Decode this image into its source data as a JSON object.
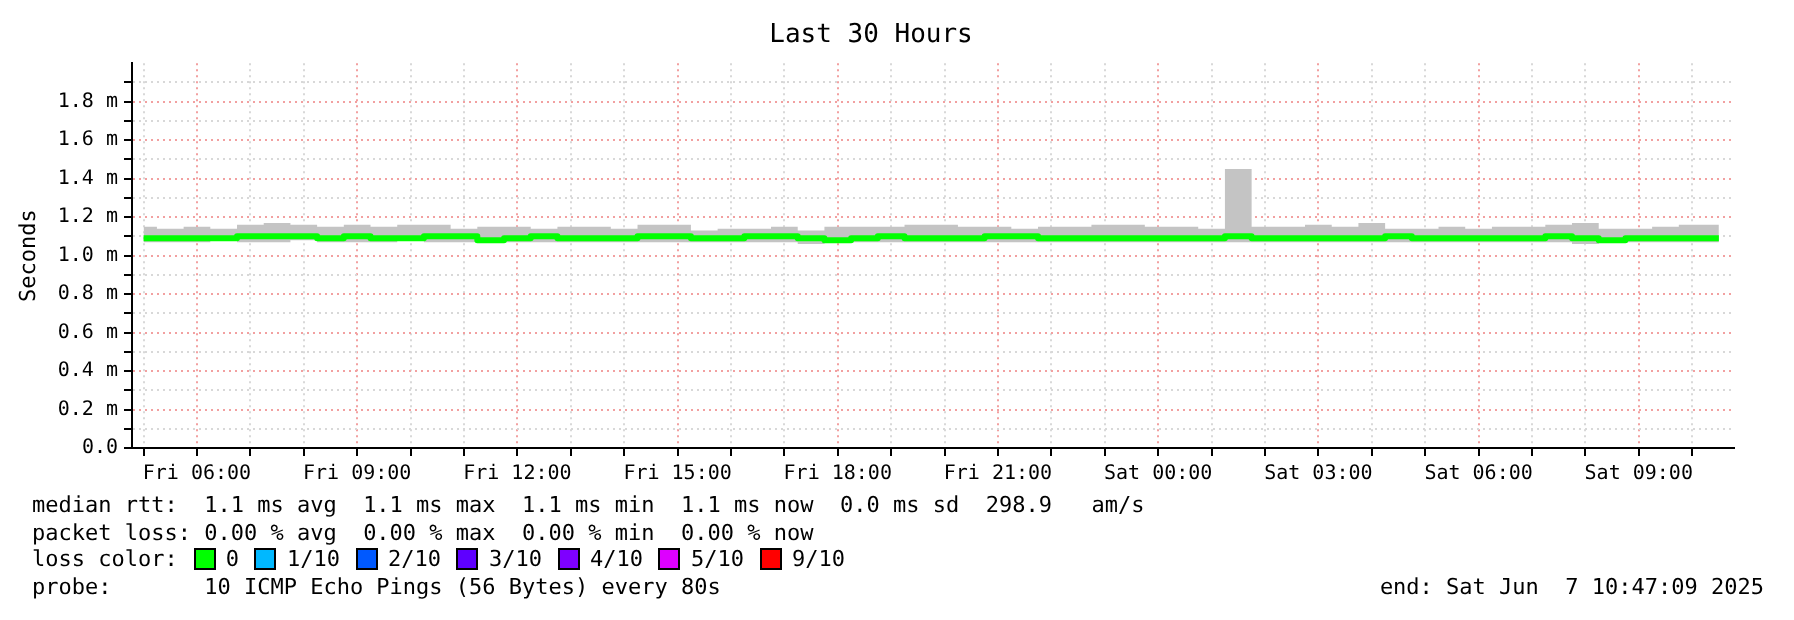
{
  "chart_data": {
    "type": "step",
    "title": "Last 30 Hours",
    "ylabel": "Seconds",
    "legend_title": "loss color:",
    "legend": "bottom",
    "grid": true,
    "line_style": "solid",
    "marker": "none",
    "x": [
      "2025-06-06T05:00",
      "2025-06-06T05:30",
      "2025-06-06T06:00",
      "2025-06-06T06:30",
      "2025-06-06T07:00",
      "2025-06-06T07:30",
      "2025-06-06T08:00",
      "2025-06-06T08:30",
      "2025-06-06T09:00",
      "2025-06-06T09:30",
      "2025-06-06T10:00",
      "2025-06-06T10:30",
      "2025-06-06T11:00",
      "2025-06-06T11:30",
      "2025-06-06T12:00",
      "2025-06-06T12:30",
      "2025-06-06T13:00",
      "2025-06-06T13:30",
      "2025-06-06T14:00",
      "2025-06-06T14:30",
      "2025-06-06T15:00",
      "2025-06-06T15:30",
      "2025-06-06T16:00",
      "2025-06-06T16:30",
      "2025-06-06T17:00",
      "2025-06-06T17:30",
      "2025-06-06T18:00",
      "2025-06-06T18:30",
      "2025-06-06T19:00",
      "2025-06-06T19:30",
      "2025-06-06T20:00",
      "2025-06-06T20:30",
      "2025-06-06T21:00",
      "2025-06-06T21:30",
      "2025-06-06T22:00",
      "2025-06-06T22:30",
      "2025-06-06T23:00",
      "2025-06-06T23:30",
      "2025-06-07T00:00",
      "2025-06-07T00:30",
      "2025-06-07T01:00",
      "2025-06-07T01:30",
      "2025-06-07T02:00",
      "2025-06-07T02:30",
      "2025-06-07T03:00",
      "2025-06-07T03:30",
      "2025-06-07T04:00",
      "2025-06-07T04:30",
      "2025-06-07T05:00",
      "2025-06-07T05:30",
      "2025-06-07T06:00",
      "2025-06-07T06:30",
      "2025-06-07T07:00",
      "2025-06-07T07:30",
      "2025-06-07T08:00",
      "2025-06-07T08:30",
      "2025-06-07T09:00",
      "2025-06-07T09:30",
      "2025-06-07T10:00",
      "2025-06-07T10:30"
    ],
    "xlim": [
      "2025-06-06T04:47",
      "2025-06-07T10:47"
    ],
    "xticks": [
      {
        "value": "2025-06-06T05:00",
        "label": null
      },
      {
        "value": "2025-06-06T06:00",
        "label": "Fri 06:00"
      },
      {
        "value": "2025-06-06T07:00",
        "label": null
      },
      {
        "value": "2025-06-06T08:00",
        "label": null
      },
      {
        "value": "2025-06-06T09:00",
        "label": "Fri 09:00"
      },
      {
        "value": "2025-06-06T10:00",
        "label": null
      },
      {
        "value": "2025-06-06T11:00",
        "label": null
      },
      {
        "value": "2025-06-06T12:00",
        "label": "Fri 12:00"
      },
      {
        "value": "2025-06-06T13:00",
        "label": null
      },
      {
        "value": "2025-06-06T14:00",
        "label": null
      },
      {
        "value": "2025-06-06T15:00",
        "label": "Fri 15:00"
      },
      {
        "value": "2025-06-06T16:00",
        "label": null
      },
      {
        "value": "2025-06-06T17:00",
        "label": null
      },
      {
        "value": "2025-06-06T18:00",
        "label": "Fri 18:00"
      },
      {
        "value": "2025-06-06T19:00",
        "label": null
      },
      {
        "value": "2025-06-06T20:00",
        "label": null
      },
      {
        "value": "2025-06-06T21:00",
        "label": "Fri 21:00"
      },
      {
        "value": "2025-06-06T22:00",
        "label": null
      },
      {
        "value": "2025-06-06T23:00",
        "label": null
      },
      {
        "value": "2025-06-07T00:00",
        "label": "Sat 00:00"
      },
      {
        "value": "2025-06-07T01:00",
        "label": null
      },
      {
        "value": "2025-06-07T02:00",
        "label": null
      },
      {
        "value": "2025-06-07T03:00",
        "label": "Sat 03:00"
      },
      {
        "value": "2025-06-07T04:00",
        "label": null
      },
      {
        "value": "2025-06-07T05:00",
        "label": null
      },
      {
        "value": "2025-06-07T06:00",
        "label": "Sat 06:00"
      },
      {
        "value": "2025-06-07T07:00",
        "label": null
      },
      {
        "value": "2025-06-07T08:00",
        "label": null
      },
      {
        "value": "2025-06-07T09:00",
        "label": "Sat 09:00"
      },
      {
        "value": "2025-06-07T10:00",
        "label": null
      }
    ],
    "ylim": [
      0,
      2
    ],
    "yticks": [
      {
        "value": 0,
        "label": "0.0"
      },
      {
        "value": 0.1,
        "label": null
      },
      {
        "value": 0.2,
        "label": "0.2 m"
      },
      {
        "value": 0.3,
        "label": null
      },
      {
        "value": 0.4,
        "label": "0.4 m"
      },
      {
        "value": 0.5,
        "label": null
      },
      {
        "value": 0.6,
        "label": "0.6 m"
      },
      {
        "value": 0.7,
        "label": null
      },
      {
        "value": 0.8,
        "label": "0.8 m"
      },
      {
        "value": 0.9,
        "label": null
      },
      {
        "value": 1.0,
        "label": "1.0 m"
      },
      {
        "value": 1.1,
        "label": null
      },
      {
        "value": 1.2,
        "label": "1.2 m"
      },
      {
        "value": 1.3,
        "label": null
      },
      {
        "value": 1.4,
        "label": "1.4 m"
      },
      {
        "value": 1.5,
        "label": null
      },
      {
        "value": 1.6,
        "label": "1.6 m"
      },
      {
        "value": 1.7,
        "label": null
      },
      {
        "value": 1.8,
        "label": "1.8 m"
      },
      {
        "value": 1.9,
        "label": null
      }
    ],
    "series": [
      {
        "name": "0",
        "color": "#00ff00",
        "values": [
          1.09,
          1.09,
          1.09,
          1.09,
          1.1,
          1.1,
          1.1,
          1.09,
          1.1,
          1.09,
          1.09,
          1.1,
          1.1,
          1.08,
          1.09,
          1.1,
          1.09,
          1.09,
          1.09,
          1.1,
          1.1,
          1.09,
          1.09,
          1.1,
          1.1,
          1.09,
          1.08,
          1.09,
          1.1,
          1.09,
          1.09,
          1.09,
          1.1,
          1.1,
          1.09,
          1.09,
          1.09,
          1.09,
          1.09,
          1.09,
          1.09,
          1.1,
          1.09,
          1.09,
          1.09,
          1.09,
          1.09,
          1.1,
          1.09,
          1.09,
          1.09,
          1.09,
          1.09,
          1.1,
          1.09,
          1.08,
          1.09,
          1.09,
          1.09,
          1.09
        ],
        "lower": [
          1.07,
          1.07,
          1.07,
          1.08,
          1.07,
          1.07,
          1.08,
          1.07,
          1.07,
          1.07,
          1.08,
          1.07,
          1.07,
          1.07,
          1.07,
          1.07,
          1.07,
          1.07,
          1.07,
          1.07,
          1.07,
          1.07,
          1.07,
          1.07,
          1.07,
          1.06,
          1.07,
          1.07,
          1.07,
          1.07,
          1.07,
          1.07,
          1.07,
          1.07,
          1.07,
          1.07,
          1.07,
          1.07,
          1.07,
          1.07,
          1.07,
          1.07,
          1.07,
          1.07,
          1.07,
          1.07,
          1.07,
          1.07,
          1.07,
          1.07,
          1.07,
          1.07,
          1.07,
          1.07,
          1.06,
          1.07,
          1.07,
          1.07,
          1.07,
          1.07
        ],
        "upper": [
          1.15,
          1.14,
          1.15,
          1.14,
          1.16,
          1.17,
          1.16,
          1.15,
          1.16,
          1.15,
          1.16,
          1.16,
          1.14,
          1.15,
          1.15,
          1.14,
          1.15,
          1.15,
          1.14,
          1.16,
          1.16,
          1.13,
          1.14,
          1.14,
          1.15,
          1.13,
          1.15,
          1.15,
          1.15,
          1.16,
          1.16,
          1.15,
          1.15,
          1.14,
          1.15,
          1.15,
          1.16,
          1.16,
          1.15,
          1.15,
          1.14,
          1.45,
          1.15,
          1.15,
          1.16,
          1.15,
          1.17,
          1.14,
          1.14,
          1.15,
          1.14,
          1.15,
          1.15,
          1.16,
          1.17,
          1.14,
          1.14,
          1.15,
          1.16,
          1.16
        ]
      },
      {
        "name": "1/10",
        "color": "#00b8ff",
        "values": [
          null,
          null,
          null,
          null,
          null,
          null,
          null,
          null,
          null,
          null,
          null,
          null,
          null,
          null,
          null,
          null,
          null,
          null,
          null,
          null,
          null,
          null,
          null,
          null,
          null,
          null,
          null,
          null,
          null,
          null,
          null,
          null,
          null,
          null,
          null,
          null,
          null,
          null,
          null,
          null,
          null,
          null,
          null,
          null,
          null,
          null,
          null,
          null,
          null,
          null,
          null,
          null,
          null,
          null,
          null,
          null,
          null,
          null,
          null,
          null
        ]
      },
      {
        "name": "2/10",
        "color": "#0059ff",
        "values": [
          null,
          null,
          null,
          null,
          null,
          null,
          null,
          null,
          null,
          null,
          null,
          null,
          null,
          null,
          null,
          null,
          null,
          null,
          null,
          null,
          null,
          null,
          null,
          null,
          null,
          null,
          null,
          null,
          null,
          null,
          null,
          null,
          null,
          null,
          null,
          null,
          null,
          null,
          null,
          null,
          null,
          null,
          null,
          null,
          null,
          null,
          null,
          null,
          null,
          null,
          null,
          null,
          null,
          null,
          null,
          null,
          null,
          null,
          null,
          null
        ]
      },
      {
        "name": "3/10",
        "color": "#5e00ff",
        "values": [
          null,
          null,
          null,
          null,
          null,
          null,
          null,
          null,
          null,
          null,
          null,
          null,
          null,
          null,
          null,
          null,
          null,
          null,
          null,
          null,
          null,
          null,
          null,
          null,
          null,
          null,
          null,
          null,
          null,
          null,
          null,
          null,
          null,
          null,
          null,
          null,
          null,
          null,
          null,
          null,
          null,
          null,
          null,
          null,
          null,
          null,
          null,
          null,
          null,
          null,
          null,
          null,
          null,
          null,
          null,
          null,
          null,
          null,
          null,
          null
        ]
      },
      {
        "name": "4/10",
        "color": "#7e00ff",
        "values": [
          null,
          null,
          null,
          null,
          null,
          null,
          null,
          null,
          null,
          null,
          null,
          null,
          null,
          null,
          null,
          null,
          null,
          null,
          null,
          null,
          null,
          null,
          null,
          null,
          null,
          null,
          null,
          null,
          null,
          null,
          null,
          null,
          null,
          null,
          null,
          null,
          null,
          null,
          null,
          null,
          null,
          null,
          null,
          null,
          null,
          null,
          null,
          null,
          null,
          null,
          null,
          null,
          null,
          null,
          null,
          null,
          null,
          null,
          null,
          null
        ]
      },
      {
        "name": "5/10",
        "color": "#dd00ff",
        "values": [
          null,
          null,
          null,
          null,
          null,
          null,
          null,
          null,
          null,
          null,
          null,
          null,
          null,
          null,
          null,
          null,
          null,
          null,
          null,
          null,
          null,
          null,
          null,
          null,
          null,
          null,
          null,
          null,
          null,
          null,
          null,
          null,
          null,
          null,
          null,
          null,
          null,
          null,
          null,
          null,
          null,
          null,
          null,
          null,
          null,
          null,
          null,
          null,
          null,
          null,
          null,
          null,
          null,
          null,
          null,
          null,
          null,
          null,
          null,
          null
        ]
      },
      {
        "name": "9/10",
        "color": "#ff0000",
        "values": [
          null,
          null,
          null,
          null,
          null,
          null,
          null,
          null,
          null,
          null,
          null,
          null,
          null,
          null,
          null,
          null,
          null,
          null,
          null,
          null,
          null,
          null,
          null,
          null,
          null,
          null,
          null,
          null,
          null,
          null,
          null,
          null,
          null,
          null,
          null,
          null,
          null,
          null,
          null,
          null,
          null,
          null,
          null,
          null,
          null,
          null,
          null,
          null,
          null,
          null,
          null,
          null,
          null,
          null,
          null,
          null,
          null,
          null,
          null,
          null
        ]
      }
    ],
    "annotations": [
      "median rtt:  1.1 ms avg  1.1 ms max  1.1 ms min  1.1 ms now  0.0 ms sd  298.9   am/s",
      "packet loss: 0.00 % avg  0.00 % max  0.00 % min  0.00 % now",
      "probe:       10 ICMP Echo Pings (56 Bytes) every 80s",
      "end: Sat Jun  7 10:47:09 2025"
    ]
  }
}
